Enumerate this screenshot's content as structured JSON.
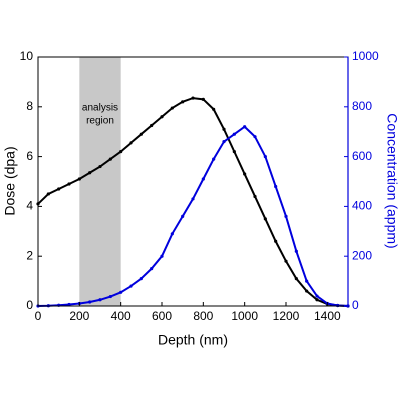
{
  "chart_data": {
    "type": "line",
    "xlabel": "Depth (nm)",
    "ylabel": "Dose (dpa)",
    "y2label": "Concentration (appm)",
    "x": [
      0,
      50,
      100,
      150,
      200,
      250,
      300,
      350,
      400,
      450,
      500,
      550,
      600,
      650,
      700,
      750,
      800,
      850,
      900,
      950,
      1000,
      1050,
      1100,
      1150,
      1200,
      1250,
      1300,
      1350,
      1400,
      1450,
      1500
    ],
    "series": [
      {
        "name": "Dose (dpa)",
        "color": "#000000",
        "axis": "y",
        "values": [
          4.1,
          4.5,
          4.7,
          4.9,
          5.1,
          5.35,
          5.6,
          5.9,
          6.2,
          6.55,
          6.9,
          7.25,
          7.6,
          7.95,
          8.2,
          8.35,
          8.3,
          7.9,
          7.1,
          6.2,
          5.3,
          4.4,
          3.5,
          2.6,
          1.8,
          1.1,
          0.6,
          0.25,
          0.08,
          0.02,
          0
        ]
      },
      {
        "name": "Concentration (appm)",
        "color": "#0000dd",
        "axis": "y2",
        "values": [
          0,
          1,
          3,
          6,
          10,
          16,
          25,
          38,
          55,
          80,
          110,
          150,
          200,
          290,
          360,
          430,
          510,
          590,
          660,
          690,
          720,
          680,
          600,
          480,
          360,
          220,
          100,
          40,
          10,
          2,
          0
        ]
      }
    ],
    "xlim": [
      0,
      1500
    ],
    "xticks": [
      0,
      200,
      400,
      600,
      800,
      1000,
      1200,
      1400
    ],
    "ylim": [
      0,
      10
    ],
    "yticks": [
      0,
      2,
      4,
      6,
      8,
      10
    ],
    "y2lim": [
      0,
      1000
    ],
    "y2ticks": [
      0,
      200,
      400,
      600,
      800,
      1000
    ],
    "shaded_region": {
      "x": [
        200,
        400
      ],
      "color": "#c8c8c8",
      "label": [
        "analysis",
        "region"
      ]
    }
  }
}
